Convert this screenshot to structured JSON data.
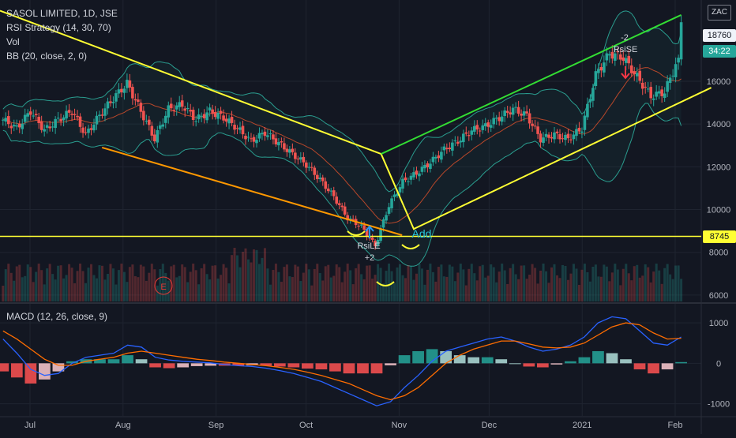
{
  "header": {
    "symbol_line": "SASOL LIMITED, 1D, JSE",
    "indicators": [
      "RSI Strategy (14, 30, 70)",
      "Vol",
      "BB (20, close, 2, 0)"
    ],
    "macd_title": "MACD (12, 26, close, 9)",
    "currency": "ZAC"
  },
  "colors": {
    "background": "#131722",
    "grid": "#1f2430",
    "up": "#26a69a",
    "down": "#ef5350",
    "bb_band": "#2a9d8f",
    "bb_basis": "#b7472a",
    "trend_yellow": "#ffff33",
    "trend_orange": "#ff9800",
    "trend_green": "#33dd33",
    "macd_line": "#2962ff",
    "signal_line": "#ff6d00",
    "axis_text": "#b2b5be"
  },
  "price_tags": {
    "last": "18760",
    "countdown": "34:22",
    "level": "8745"
  },
  "chart_data": [
    {
      "type": "candlestick",
      "pane": "price",
      "x_ticks": [
        "Jul",
        "Aug",
        "Sep",
        "Oct",
        "Nov",
        "Dec",
        "2021",
        "Feb"
      ],
      "y_ticks": [
        6000,
        8000,
        10000,
        12000,
        14000,
        16000
      ],
      "ylim": [
        5700,
        19800
      ],
      "grid": true,
      "horizontal_level": 8745,
      "last_price": 18760,
      "trend_lines": [
        {
          "color": "yellow",
          "from": [
            "2020-06-21",
            19300
          ],
          "to": [
            "2020-10-26",
            12600
          ]
        },
        {
          "color": "yellow",
          "from": [
            "2020-10-26",
            12600
          ],
          "to": [
            "2020-11-06",
            9050
          ]
        },
        {
          "color": "orange",
          "from": [
            "2020-07-25",
            12900
          ],
          "to": [
            "2020-11-02",
            8800
          ]
        },
        {
          "color": "green",
          "from": [
            "2020-10-26",
            12600
          ],
          "to": [
            "2021-02-03",
            19100
          ]
        },
        {
          "color": "yellow",
          "from": [
            "2020-11-06",
            9100
          ],
          "to": [
            "2021-02-13",
            15700
          ]
        }
      ],
      "closes_weekly": [
        14200,
        13800,
        14600,
        13700,
        14200,
        14600,
        13500,
        14400,
        15200,
        15900,
        14600,
        13300,
        14700,
        14900,
        14200,
        14600,
        14300,
        13800,
        13200,
        13600,
        13100,
        12600,
        12100,
        11400,
        10600,
        9600,
        9200,
        8300,
        10200,
        11300,
        11700,
        12200,
        12800,
        13200,
        13700,
        13900,
        14300,
        14700,
        14400,
        13300,
        13500,
        13300,
        13800,
        16300,
        17300,
        17100,
        16200,
        15300,
        15500,
        17100
      ],
      "annotations": [
        {
          "text": "RsiLE",
          "kind": "long entry"
        },
        {
          "text": "+2",
          "kind": "position"
        },
        {
          "text": "Add",
          "kind": "note"
        },
        {
          "text": "-2",
          "kind": "position"
        },
        {
          "text": "RsiSE",
          "kind": "short entry"
        },
        {
          "text": "E",
          "kind": "earnings marker"
        }
      ]
    },
    {
      "type": "line",
      "pane": "macd",
      "title": "MACD (12, 26, close, 9)",
      "y_ticks": [
        -1000,
        0,
        1000
      ],
      "ylim": [
        -1300,
        1450
      ],
      "series": [
        {
          "name": "MACD",
          "values": [
            600,
            250,
            -150,
            -300,
            -250,
            0,
            150,
            200,
            250,
            450,
            400,
            150,
            80,
            50,
            30,
            10,
            -30,
            -60,
            -80,
            -120,
            -180,
            -250,
            -350,
            -450,
            -600,
            -750,
            -900,
            -1050,
            -950,
            -600,
            -300,
            50,
            300,
            400,
            500,
            600,
            650,
            550,
            400,
            300,
            350,
            450,
            650,
            1000,
            1150,
            1100,
            800,
            500,
            450,
            650
          ]
        },
        {
          "name": "Signal",
          "values": [
            800,
            600,
            350,
            100,
            -50,
            -50,
            50,
            100,
            150,
            250,
            300,
            250,
            200,
            150,
            100,
            70,
            30,
            0,
            -30,
            -60,
            -100,
            -150,
            -220,
            -300,
            -400,
            -500,
            -650,
            -800,
            -900,
            -800,
            -600,
            -300,
            0,
            200,
            350,
            450,
            550,
            550,
            480,
            400,
            380,
            400,
            500,
            700,
            900,
            1000,
            950,
            750,
            600,
            620
          ]
        }
      ]
    }
  ]
}
